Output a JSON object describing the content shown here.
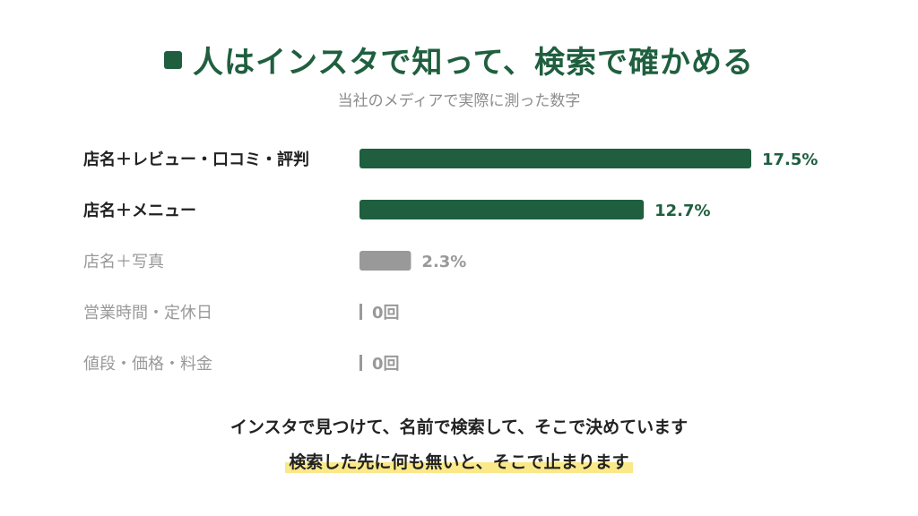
{
  "title": "人はインスタで知って、検索で確かめる",
  "subtitle": "当社のメディアで実際に測った数字",
  "colors": {
    "highlight": "#1f5f3f",
    "muted": "#999999",
    "label_dark": "#222222",
    "label_muted": "#999999",
    "footer_marker": "#fbe889"
  },
  "chart_data": {
    "type": "bar",
    "orientation": "horizontal",
    "categories": [
      "店名＋レビュー・口コミ・評判",
      "店名＋メニュー",
      "店名＋写真",
      "営業時間・定休日",
      "値段・価格・料金"
    ],
    "values": [
      17.5,
      12.7,
      2.3,
      0,
      0
    ],
    "value_labels": [
      "17.5%",
      "12.7%",
      "2.3%",
      "0回",
      "0回"
    ],
    "highlighted": [
      true,
      true,
      false,
      false,
      false
    ],
    "grid": false
  },
  "footer": {
    "line1": "インスタで見つけて、名前で検索して、そこで決めています",
    "line2": "検索した先に何も無いと、そこで止まります"
  }
}
